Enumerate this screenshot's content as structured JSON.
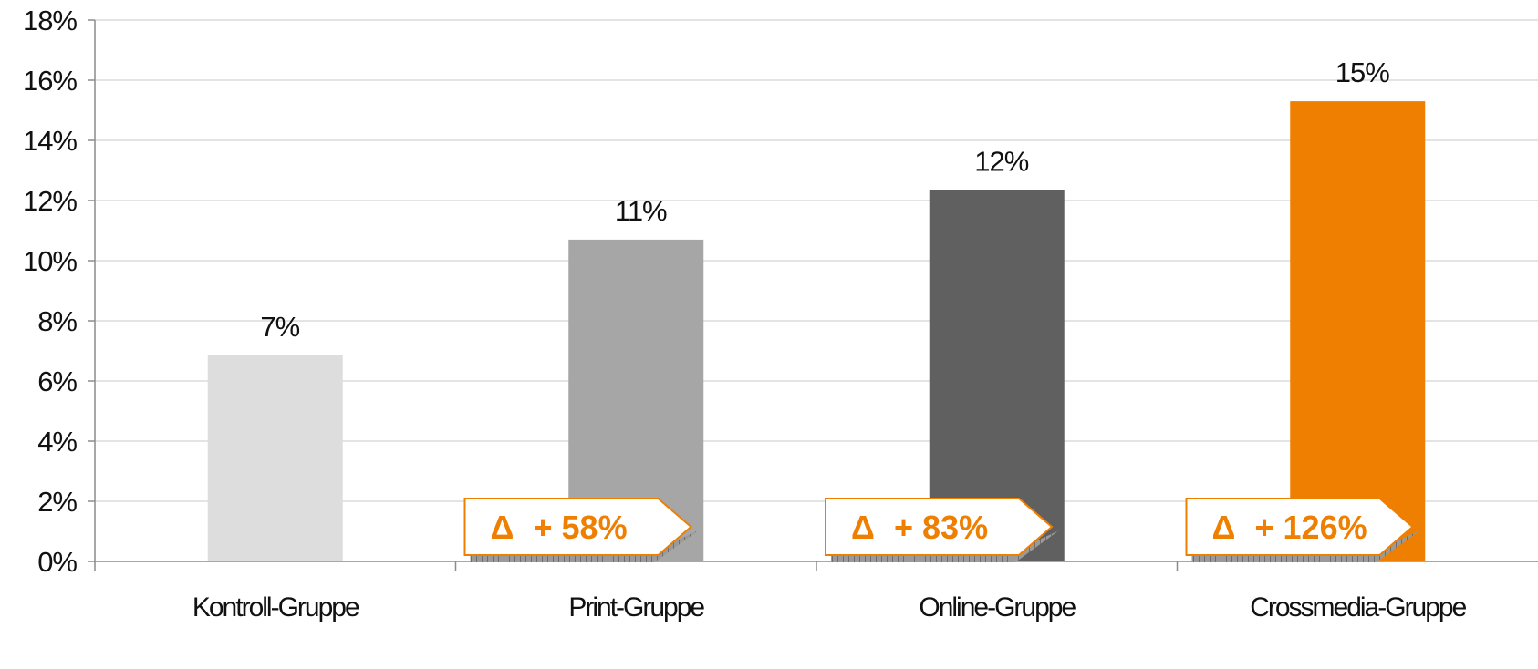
{
  "chart_data": {
    "type": "bar",
    "categories": [
      "Kontroll-Gruppe",
      "Print-Gruppe",
      "Online-Gruppe",
      "Crossmedia-Gruppe"
    ],
    "values": [
      6.85,
      10.7,
      12.35,
      15.3
    ],
    "data_labels": [
      "7%",
      "11%",
      "12%",
      "15%"
    ],
    "bar_colors": [
      "#dddddd",
      "#a6a6a6",
      "#606060",
      "#ee7f00"
    ],
    "ylim": [
      0,
      18
    ],
    "yticks": [
      0,
      2,
      4,
      6,
      8,
      10,
      12,
      14,
      16,
      18
    ],
    "ytick_labels": [
      "0%",
      "2%",
      "4%",
      "6%",
      "8%",
      "10%",
      "12%",
      "14%",
      "16%",
      "18%"
    ],
    "grid": true,
    "title": "",
    "xlabel": "",
    "ylabel": "",
    "annotations": [
      {
        "category": "Print-Gruppe",
        "symbol": "Δ",
        "text": "+ 58%"
      },
      {
        "category": "Online-Gruppe",
        "symbol": "Δ",
        "text": "+ 83%"
      },
      {
        "category": "Crossmedia-Gruppe",
        "symbol": "Δ",
        "text": "+ 126%"
      }
    ],
    "accent_color": "#ee7f00"
  }
}
